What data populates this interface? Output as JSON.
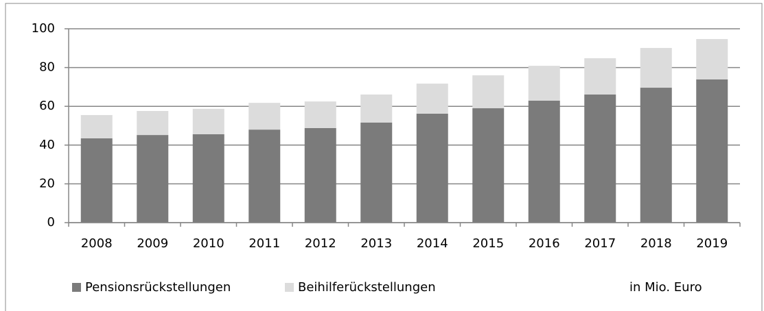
{
  "chart_data": {
    "type": "stacked_bar",
    "categories": [
      "2008",
      "2009",
      "2010",
      "2011",
      "2012",
      "2013",
      "2014",
      "2015",
      "2016",
      "2017",
      "2018",
      "2019"
    ],
    "series": [
      {
        "name": "Pensionsrückstellungen",
        "color": "#7b7b7b",
        "values": [
          43.5,
          45.2,
          45.6,
          48.0,
          48.8,
          51.6,
          56.2,
          59.0,
          62.9,
          66.1,
          69.6,
          73.9
        ]
      },
      {
        "name": "Beihilferückstellungen",
        "color": "#dcdcdc",
        "values": [
          12.0,
          12.4,
          13.1,
          13.8,
          13.7,
          14.5,
          15.5,
          17.0,
          18.0,
          18.7,
          20.5,
          20.8
        ]
      }
    ],
    "annotation": "in Mio. Euro",
    "ylim": [
      0,
      100
    ],
    "yticks": [
      0,
      20,
      40,
      60,
      80,
      100
    ],
    "grid": true
  }
}
